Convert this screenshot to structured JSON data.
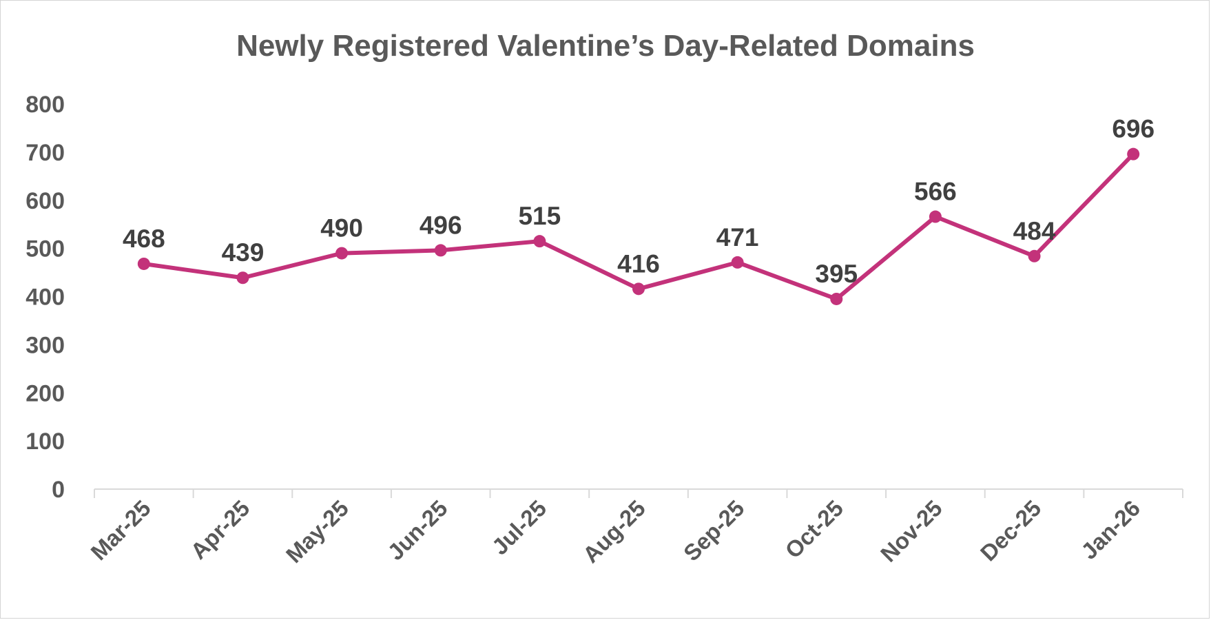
{
  "chart_data": {
    "type": "line",
    "title": "Newly Registered Valentine’s Day-Related Domains",
    "categories": [
      "Mar-25",
      "Apr-25",
      "May-25",
      "Jun-25",
      "Jul-25",
      "Aug-25",
      "Sep-25",
      "Oct-25",
      "Nov-25",
      "Dec-25",
      "Jan-26"
    ],
    "series": [
      {
        "values": [
          468,
          439,
          490,
          496,
          515,
          416,
          471,
          395,
          566,
          484,
          696
        ],
        "color": "#C3327A"
      }
    ],
    "ylim": [
      0,
      800
    ],
    "yticks": [
      0,
      100,
      200,
      300,
      400,
      500,
      600,
      700,
      800
    ],
    "xlabel": "",
    "ylabel": "",
    "grid": false,
    "data_labels": true,
    "axis_color": "#D9D9D9",
    "text_color": "#595959"
  }
}
